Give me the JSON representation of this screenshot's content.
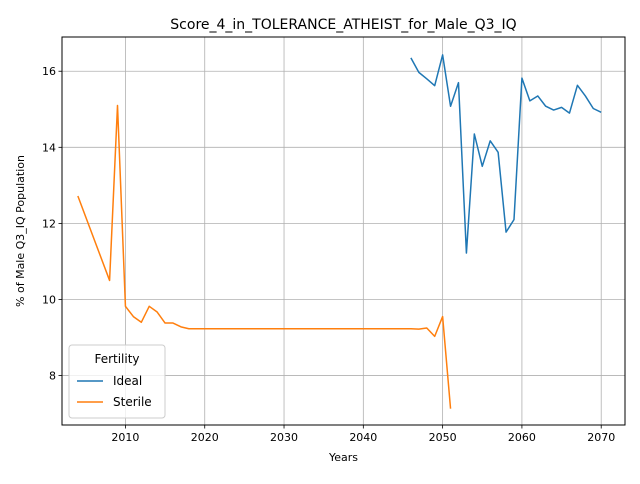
{
  "chart_data": {
    "type": "line",
    "title": "Score_4_in_TOLERANCE_ATHEIST_for_Male_Q3_IQ",
    "xlabel": "Years",
    "ylabel": "% of Male Q3_IQ Population",
    "xlim": [
      2002,
      2073
    ],
    "ylim": [
      6.7,
      16.9
    ],
    "xticks": [
      2010,
      2020,
      2030,
      2040,
      2050,
      2060,
      2070
    ],
    "yticks": [
      8,
      10,
      12,
      14,
      16
    ],
    "grid": true,
    "legend": {
      "title": "Fertility",
      "position": "lower-left"
    },
    "series": [
      {
        "name": "Ideal",
        "color": "#1f77b4",
        "x": [
          2046,
          2047,
          2048,
          2049,
          2050,
          2051,
          2052,
          2053,
          2054,
          2055,
          2056,
          2057,
          2058,
          2059,
          2060,
          2061,
          2062,
          2063,
          2064,
          2065,
          2066,
          2067,
          2068,
          2069,
          2070
        ],
        "y": [
          16.35,
          15.97,
          15.8,
          15.62,
          16.43,
          15.08,
          15.7,
          11.22,
          14.35,
          13.5,
          14.17,
          13.87,
          11.77,
          12.1,
          15.82,
          15.22,
          15.35,
          15.08,
          14.98,
          15.05,
          14.9,
          15.63,
          15.35,
          15.02,
          14.92
        ]
      },
      {
        "name": "Sterile",
        "color": "#ff7f0e",
        "x": [
          2004,
          2008,
          2009,
          2010,
          2011,
          2012,
          2013,
          2014,
          2015,
          2016,
          2017,
          2018,
          2019,
          2020,
          2025,
          2030,
          2035,
          2040,
          2045,
          2046,
          2047,
          2048,
          2049,
          2050,
          2051
        ],
        "y": [
          12.72,
          10.5,
          15.1,
          9.82,
          9.55,
          9.4,
          9.82,
          9.67,
          9.38,
          9.38,
          9.28,
          9.23,
          9.23,
          9.23,
          9.23,
          9.23,
          9.23,
          9.23,
          9.23,
          9.23,
          9.22,
          9.25,
          9.03,
          9.55,
          7.13
        ]
      }
    ]
  }
}
